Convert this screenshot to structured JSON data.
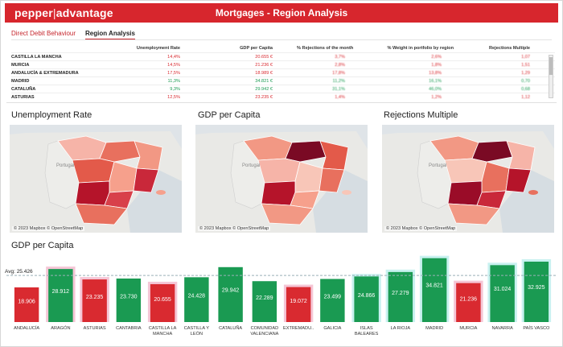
{
  "header": {
    "logo_left": "pepper",
    "logo_sep": "|",
    "logo_right": "advantage",
    "title": "Mortgages - Region Analysis"
  },
  "tabs": [
    {
      "label": "Direct Debit Behaviour",
      "active": false
    },
    {
      "label": "Region Analysis",
      "active": true
    }
  ],
  "table": {
    "columns": [
      "",
      "Unemployment Rate",
      "GDP per Capita",
      "% Rejections of the month",
      "% Weight in portfolio by region",
      "Rejections Multiple"
    ],
    "rows": [
      {
        "region": "CASTILLA LA MANCHA",
        "unemployment": "14,4%",
        "gdp": "20.655 €",
        "rejections": "3,7%",
        "weight": "2,6%",
        "multiple": "1,07",
        "color": "red"
      },
      {
        "region": "MURCIA",
        "unemployment": "14,5%",
        "gdp": "21.236 €",
        "rejections": "2,8%",
        "weight": "1,8%",
        "multiple": "1,51",
        "color": "red"
      },
      {
        "region": "ANDALUCÍA & EXTREMADURA",
        "unemployment": "17,5%",
        "gdp": "18.989 €",
        "rejections": "17,8%",
        "weight": "13,8%",
        "multiple": "1,29",
        "color": "red"
      },
      {
        "region": "MADRID",
        "unemployment": "11,3%",
        "gdp": "34.821 €",
        "rejections": "11,2%",
        "weight": "16,1%",
        "multiple": "0,70",
        "color": "green"
      },
      {
        "region": "CATALUÑA",
        "unemployment": "9,3%",
        "gdp": "29.942 €",
        "rejections": "31,1%",
        "weight": "46,0%",
        "multiple": "0,68",
        "color": "green"
      },
      {
        "region": "ASTURIAS",
        "unemployment": "12,5%",
        "gdp": "23.235 €",
        "rejections": "1,4%",
        "weight": "1,2%",
        "multiple": "1,12",
        "color": "red"
      }
    ]
  },
  "maps": [
    {
      "title": "Unemployment Rate",
      "attribution": "© 2023 Mapbox © OpenStreetMap",
      "country_label": "Portugal"
    },
    {
      "title": "GDP per Capita",
      "attribution": "© 2023 Mapbox © OpenStreetMap",
      "country_label": "Portugal"
    },
    {
      "title": "Rejections Multiple",
      "attribution": "© 2023 Mapbox © OpenStreetMap",
      "country_label": "Portugal"
    }
  ],
  "colors": {
    "brand_red": "#d7262d",
    "bar_red": "#d92a30",
    "bar_green": "#1a9a52",
    "halo_pink": "#f5c6d6",
    "halo_cyan": "#c9f1f0",
    "avg_line": "#9ab0b8"
  },
  "chart_data": {
    "type": "bar",
    "title": "GDP per Capita",
    "average": 25426,
    "average_label": "Avg: 25.426",
    "categories": [
      "ANDALUCÍA",
      "ARAGÓN",
      "ASTURIAS",
      "CANTABRIA",
      "CASTILLA LA MANCHA",
      "CASTILLA Y LEÓN",
      "CATALUÑA",
      "COMUNIDAD VALENCIANA",
      "EXTREMADU..",
      "GALICIA",
      "ISLAS BALEARES",
      "LA RIOJA",
      "MADRID",
      "MURCIA",
      "NAVARRA",
      "PAÍS VASCO"
    ],
    "category_lines": [
      [
        "ANDALUCÍA"
      ],
      [
        "ARAGÓN"
      ],
      [
        "ASTURIAS"
      ],
      [
        "CANTABRIA"
      ],
      [
        "CASTILLA LA",
        "MANCHA"
      ],
      [
        "CASTILLA Y",
        "LEÓN"
      ],
      [
        "CATALUÑA"
      ],
      [
        "COMUNIDAD",
        "VALENCIANA"
      ],
      [
        "EXTREMADU.."
      ],
      [
        "GALICIA"
      ],
      [
        "ISLAS",
        "BALEARES"
      ],
      [
        "LA RIOJA"
      ],
      [
        "MADRID"
      ],
      [
        "MURCIA"
      ],
      [
        "NAVARRA"
      ],
      [
        "PAÍS VASCO"
      ]
    ],
    "values": [
      18906,
      28912,
      23235,
      23730,
      20655,
      24428,
      29942,
      22289,
      19072,
      23499,
      24866,
      27279,
      34821,
      21236,
      31024,
      32925
    ],
    "labels": [
      "18.906",
      "28.912",
      "23.235",
      "23.730",
      "20.655",
      "24.428",
      "29.942",
      "22.289",
      "19.072",
      "23.499",
      "24.866",
      "27.279",
      "34.821",
      "21.236",
      "31.024",
      "32.925"
    ],
    "bar_colors": [
      "red",
      "green",
      "red",
      "green",
      "red",
      "green",
      "green",
      "green",
      "red",
      "green",
      "green",
      "green",
      "green",
      "red",
      "green",
      "green"
    ],
    "halo": [
      "none",
      "pink",
      "pink",
      "none",
      "pink",
      "none",
      "none",
      "none",
      "pink",
      "none",
      "cyan",
      "cyan",
      "cyan",
      "pink",
      "cyan",
      "cyan"
    ],
    "ylim": [
      0,
      36000
    ]
  }
}
